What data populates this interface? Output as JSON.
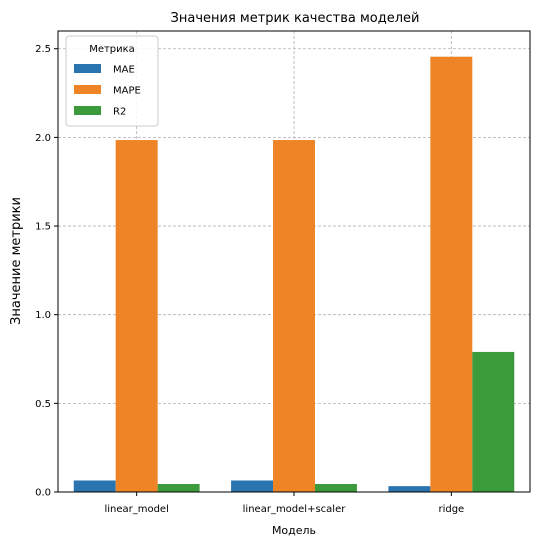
{
  "chart_data": {
    "type": "bar",
    "title": "Значения метрик качества моделей",
    "xlabel": "Модель",
    "ylabel": "Значение метрики",
    "categories": [
      "linear_model",
      "linear_model+scaler",
      "ridge"
    ],
    "series": [
      {
        "name": "MAE",
        "values": [
          0.065,
          0.065,
          0.033
        ],
        "color": "#2a75b0"
      },
      {
        "name": "MAPE",
        "values": [
          1.985,
          1.985,
          2.455
        ],
        "color": "#ee8426"
      },
      {
        "name": "R2",
        "values": [
          0.045,
          0.045,
          0.79
        ],
        "color": "#3b9a3b"
      }
    ],
    "ylim": [
      0,
      2.6
    ],
    "yticks": [
      "0.0",
      "0.5",
      "1.0",
      "1.5",
      "2.0",
      "2.5"
    ],
    "grid": true,
    "legend": {
      "title": "Метрика",
      "placement": "top-left"
    }
  }
}
